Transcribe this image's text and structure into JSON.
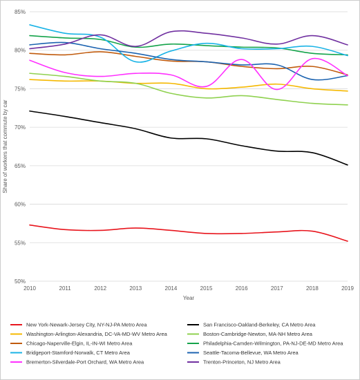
{
  "chart_data": {
    "type": "line",
    "title": "",
    "xlabel": "Year",
    "ylabel": "Share of workers that commute by car",
    "x": [
      2010,
      2011,
      2012,
      2013,
      2014,
      2015,
      2016,
      2017,
      2018,
      2019
    ],
    "xlim": [
      2010,
      2019
    ],
    "ylim": [
      50,
      85
    ],
    "yticks": [
      50,
      55,
      60,
      65,
      70,
      75,
      80,
      85
    ],
    "ytick_labels": [
      "50%",
      "55%",
      "60%",
      "65%",
      "70%",
      "75%",
      "80%",
      "85%"
    ],
    "xtick_labels": [
      "2010",
      "2011",
      "2012",
      "2013",
      "2014",
      "2015",
      "2016",
      "2017",
      "2018",
      "2019"
    ],
    "grid": "horizontal",
    "legend_position": "bottom",
    "series": [
      {
        "name": "New York-Newark-Jersey City, NY-NJ-PA Metro Area",
        "color": "#e8141c",
        "values": [
          57.3,
          56.7,
          56.6,
          56.9,
          56.6,
          56.2,
          56.2,
          56.4,
          56.5,
          55.2
        ]
      },
      {
        "name": "San Francisco-Oakland-Berkeley, CA Metro Area",
        "color": "#000000",
        "values": [
          72.1,
          71.4,
          70.6,
          69.8,
          68.6,
          68.5,
          67.6,
          66.9,
          66.7,
          65.1
        ]
      },
      {
        "name": "Washington-Arlington-Alexandria, DC-VA-MD-WV Metro Area",
        "color": "#f5b800",
        "values": [
          76.2,
          76.0,
          76.0,
          75.7,
          75.7,
          75.0,
          75.2,
          75.6,
          75.0,
          74.7
        ]
      },
      {
        "name": "Boston-Cambridge-Newton, MA-NH Metro Area",
        "color": "#8fd14f",
        "values": [
          77.0,
          76.6,
          76.0,
          75.7,
          74.4,
          73.8,
          74.1,
          73.6,
          73.1,
          72.9
        ]
      },
      {
        "name": "Chicago-Naperville-Elgin, IL-IN-WI Metro Area",
        "color": "#c05a0c",
        "values": [
          79.6,
          79.4,
          79.8,
          79.2,
          78.6,
          78.5,
          77.9,
          77.6,
          77.9,
          76.8
        ]
      },
      {
        "name": "Philadelphia-Camden-Wilmington, PA-NJ-DE-MD Metro Area",
        "color": "#14a34a",
        "values": [
          81.9,
          81.6,
          81.4,
          80.4,
          80.8,
          80.6,
          80.4,
          80.3,
          79.6,
          79.4
        ]
      },
      {
        "name": "Bridgeport-Stamford-Norwalk, CT Metro Area",
        "color": "#19b3e6",
        "values": [
          83.3,
          82.2,
          81.7,
          78.5,
          79.9,
          80.9,
          80.2,
          80.2,
          80.5,
          79.3
        ]
      },
      {
        "name": "Seattle-Tacoma-Bellevue, WA Metro Area",
        "color": "#1c63b0",
        "values": [
          80.7,
          81.0,
          80.2,
          79.6,
          78.8,
          78.5,
          78.1,
          78.1,
          76.2,
          76.7
        ]
      },
      {
        "name": "Bremerton-Silverdale-Port Orchard, WA Metro Area",
        "color": "#ff30ff",
        "values": [
          78.7,
          77.1,
          76.6,
          77.0,
          76.8,
          75.3,
          78.8,
          74.9,
          78.9,
          76.7
        ]
      },
      {
        "name": "Trenton-Princeton, NJ Metro Area",
        "color": "#7030a0",
        "values": [
          80.2,
          80.8,
          82.0,
          80.5,
          82.4,
          82.2,
          81.6,
          80.8,
          81.9,
          80.7
        ]
      }
    ]
  }
}
